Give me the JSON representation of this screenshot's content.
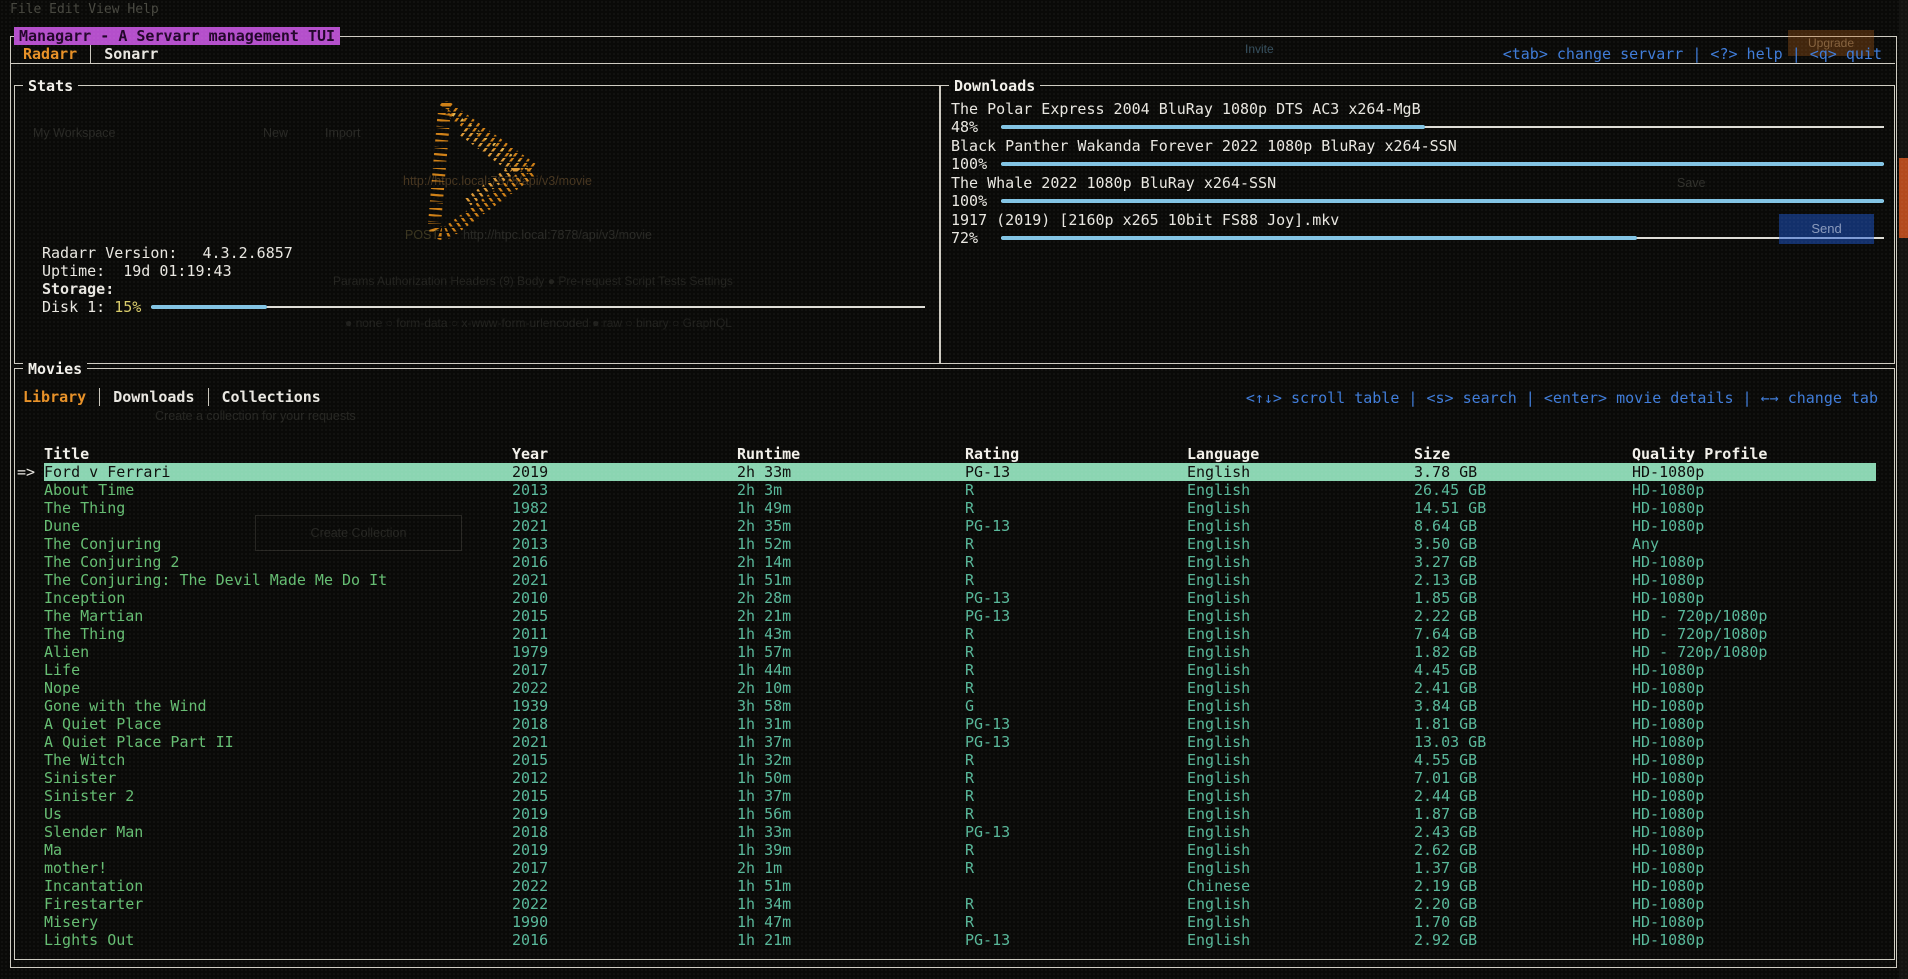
{
  "app": {
    "title": "Managarr - A Servarr management TUI",
    "tabs": [
      {
        "label": "Radarr",
        "active": true
      },
      {
        "label": "Sonarr"
      }
    ],
    "help": "<tab> change servarr | <?> help | <q> quit"
  },
  "stats": {
    "panel_title": "Stats",
    "version_label": "Radarr Version:",
    "version": "4.3.2.6857",
    "uptime_label": "Uptime:",
    "uptime": "19d 01:19:43",
    "storage_label": "Storage:",
    "disk_label": "Disk 1:",
    "disk_percent": "15%",
    "disk_pct": 15
  },
  "downloads": {
    "panel_title": "Downloads",
    "items": [
      {
        "title": "The Polar Express 2004 BluRay 1080p DTS AC3 x264-MgB",
        "percent": "48%",
        "pct": 48
      },
      {
        "title": "Black Panther Wakanda Forever 2022 1080p BluRay x264-SSN",
        "percent": "100%",
        "pct": 100
      },
      {
        "title": "The Whale 2022 1080p BluRay x264-SSN",
        "percent": "100%",
        "pct": 100
      },
      {
        "title": "1917 (2019)  [2160p x265 10bit FS88 Joy].mkv",
        "percent": "72%",
        "pct": 72
      }
    ]
  },
  "movies": {
    "panel_title": "Movies",
    "tabs": [
      {
        "label": "Library",
        "active": true
      },
      {
        "label": "Downloads"
      },
      {
        "label": "Collections"
      }
    ],
    "help": "<↑↓> scroll table | <s> search | <enter> movie details | ←→ change tab",
    "columns": [
      "Title",
      "Year",
      "Runtime",
      "Rating",
      "Language",
      "Size",
      "Quality Profile"
    ],
    "rows": [
      {
        "marker": "=>",
        "selected": true,
        "title": "Ford v Ferrari",
        "year": "2019",
        "runtime": "2h 33m",
        "rating": "PG-13",
        "language": "English",
        "size": "3.78 GB",
        "quality": "HD-1080p"
      },
      {
        "title": "About Time",
        "year": "2013",
        "runtime": "2h 3m",
        "rating": "R",
        "language": "English",
        "size": "26.45 GB",
        "quality": "HD-1080p"
      },
      {
        "title": "The Thing",
        "year": "1982",
        "runtime": "1h 49m",
        "rating": "R",
        "language": "English",
        "size": "14.51 GB",
        "quality": "HD-1080p"
      },
      {
        "title": "Dune",
        "year": "2021",
        "runtime": "2h 35m",
        "rating": "PG-13",
        "language": "English",
        "size": "8.64 GB",
        "quality": "HD-1080p"
      },
      {
        "title": "The Conjuring",
        "year": "2013",
        "runtime": "1h 52m",
        "rating": "R",
        "language": "English",
        "size": "3.50 GB",
        "quality": "Any"
      },
      {
        "title": "The Conjuring 2",
        "year": "2016",
        "runtime": "2h 14m",
        "rating": "R",
        "language": "English",
        "size": "3.27 GB",
        "quality": "HD-1080p"
      },
      {
        "title": "The Conjuring: The Devil Made Me Do It",
        "year": "2021",
        "runtime": "1h 51m",
        "rating": "R",
        "language": "English",
        "size": "2.13 GB",
        "quality": "HD-1080p"
      },
      {
        "title": "Inception",
        "year": "2010",
        "runtime": "2h 28m",
        "rating": "PG-13",
        "language": "English",
        "size": "1.85 GB",
        "quality": "HD-1080p"
      },
      {
        "title": "The Martian",
        "year": "2015",
        "runtime": "2h 21m",
        "rating": "PG-13",
        "language": "English",
        "size": "2.22 GB",
        "quality": "HD - 720p/1080p"
      },
      {
        "title": "The Thing",
        "year": "2011",
        "runtime": "1h 43m",
        "rating": "R",
        "language": "English",
        "size": "7.64 GB",
        "quality": "HD - 720p/1080p"
      },
      {
        "title": "Alien",
        "year": "1979",
        "runtime": "1h 57m",
        "rating": "R",
        "language": "English",
        "size": "1.82 GB",
        "quality": "HD - 720p/1080p"
      },
      {
        "title": "Life",
        "year": "2017",
        "runtime": "1h 44m",
        "rating": "R",
        "language": "English",
        "size": "4.45 GB",
        "quality": "HD-1080p"
      },
      {
        "title": "Nope",
        "year": "2022",
        "runtime": "2h 10m",
        "rating": "R",
        "language": "English",
        "size": "2.41 GB",
        "quality": "HD-1080p"
      },
      {
        "title": "Gone with the Wind",
        "year": "1939",
        "runtime": "3h 58m",
        "rating": "G",
        "language": "English",
        "size": "3.84 GB",
        "quality": "HD-1080p"
      },
      {
        "title": "A Quiet Place",
        "year": "2018",
        "runtime": "1h 31m",
        "rating": "PG-13",
        "language": "English",
        "size": "1.81 GB",
        "quality": "HD-1080p"
      },
      {
        "title": "A Quiet Place Part II",
        "year": "2021",
        "runtime": "1h 37m",
        "rating": "PG-13",
        "language": "English",
        "size": "13.03 GB",
        "quality": "HD-1080p"
      },
      {
        "title": "The Witch",
        "year": "2015",
        "runtime": "1h 32m",
        "rating": "R",
        "language": "English",
        "size": "4.55 GB",
        "quality": "HD-1080p"
      },
      {
        "title": "Sinister",
        "year": "2012",
        "runtime": "1h 50m",
        "rating": "R",
        "language": "English",
        "size": "7.01 GB",
        "quality": "HD-1080p"
      },
      {
        "title": "Sinister 2",
        "year": "2015",
        "runtime": "1h 37m",
        "rating": "R",
        "language": "English",
        "size": "2.44 GB",
        "quality": "HD-1080p"
      },
      {
        "title": "Us",
        "year": "2019",
        "runtime": "1h 56m",
        "rating": "R",
        "language": "English",
        "size": "1.87 GB",
        "quality": "HD-1080p"
      },
      {
        "title": "Slender Man",
        "year": "2018",
        "runtime": "1h 33m",
        "rating": "PG-13",
        "language": "English",
        "size": "2.43 GB",
        "quality": "HD-1080p"
      },
      {
        "title": "Ma",
        "year": "2019",
        "runtime": "1h 39m",
        "rating": "R",
        "language": "English",
        "size": "2.62 GB",
        "quality": "HD-1080p"
      },
      {
        "title": "mother!",
        "year": "2017",
        "runtime": "2h 1m",
        "rating": "R",
        "language": "English",
        "size": "1.37 GB",
        "quality": "HD-1080p"
      },
      {
        "title": "Incantation",
        "year": "2022",
        "runtime": "1h 51m",
        "language": "Chinese",
        "size": "2.19 GB",
        "quality": "HD-1080p"
      },
      {
        "title": "Firestarter",
        "year": "2022",
        "runtime": "1h 34m",
        "rating": "R",
        "language": "English",
        "size": "2.20 GB",
        "quality": "HD-1080p"
      },
      {
        "title": "Misery",
        "year": "1990",
        "runtime": "1h 47m",
        "rating": "R",
        "language": "English",
        "size": "1.70 GB",
        "quality": "HD-1080p"
      },
      {
        "title": "Lights Out",
        "year": "2016",
        "runtime": "1h 21m",
        "rating": "PG-13",
        "language": "English",
        "size": "2.92 GB",
        "quality": "HD-1080p"
      }
    ]
  },
  "background_app": {
    "menu": "File  Edit  View  Help",
    "workspace": "My Workspace",
    "new_button": "New",
    "import_button": "Import",
    "url": "http://htpc.local:7878/api/v3/movie",
    "method": "POST",
    "request_tabs": "Params   Authorization   Headers (9)   Body ●   Pre-request Script   Tests   Settings",
    "body_modes": "● none   ○ form-data   ○ x-www-form-urlencoded   ● raw   ○ binary   ○ GraphQL",
    "save_button": "Save",
    "send_button": "Send",
    "invite_button": "Invite",
    "upgrade_button": "Upgrade",
    "collection_hint": "Create a collection for your requests",
    "create_collection_button": "Create Collection"
  },
  "colors": {
    "accent_orange": "#e89127",
    "title_magenta": "#b44fcb",
    "help_blue": "#3f7cd9",
    "gauge_blue": "#82c4e4",
    "selection_teal": "#8bd5b2",
    "cell_green": "#58b89a",
    "border_white": "#cfccc2",
    "disk_percent_yellow": "#d9cc6a"
  }
}
